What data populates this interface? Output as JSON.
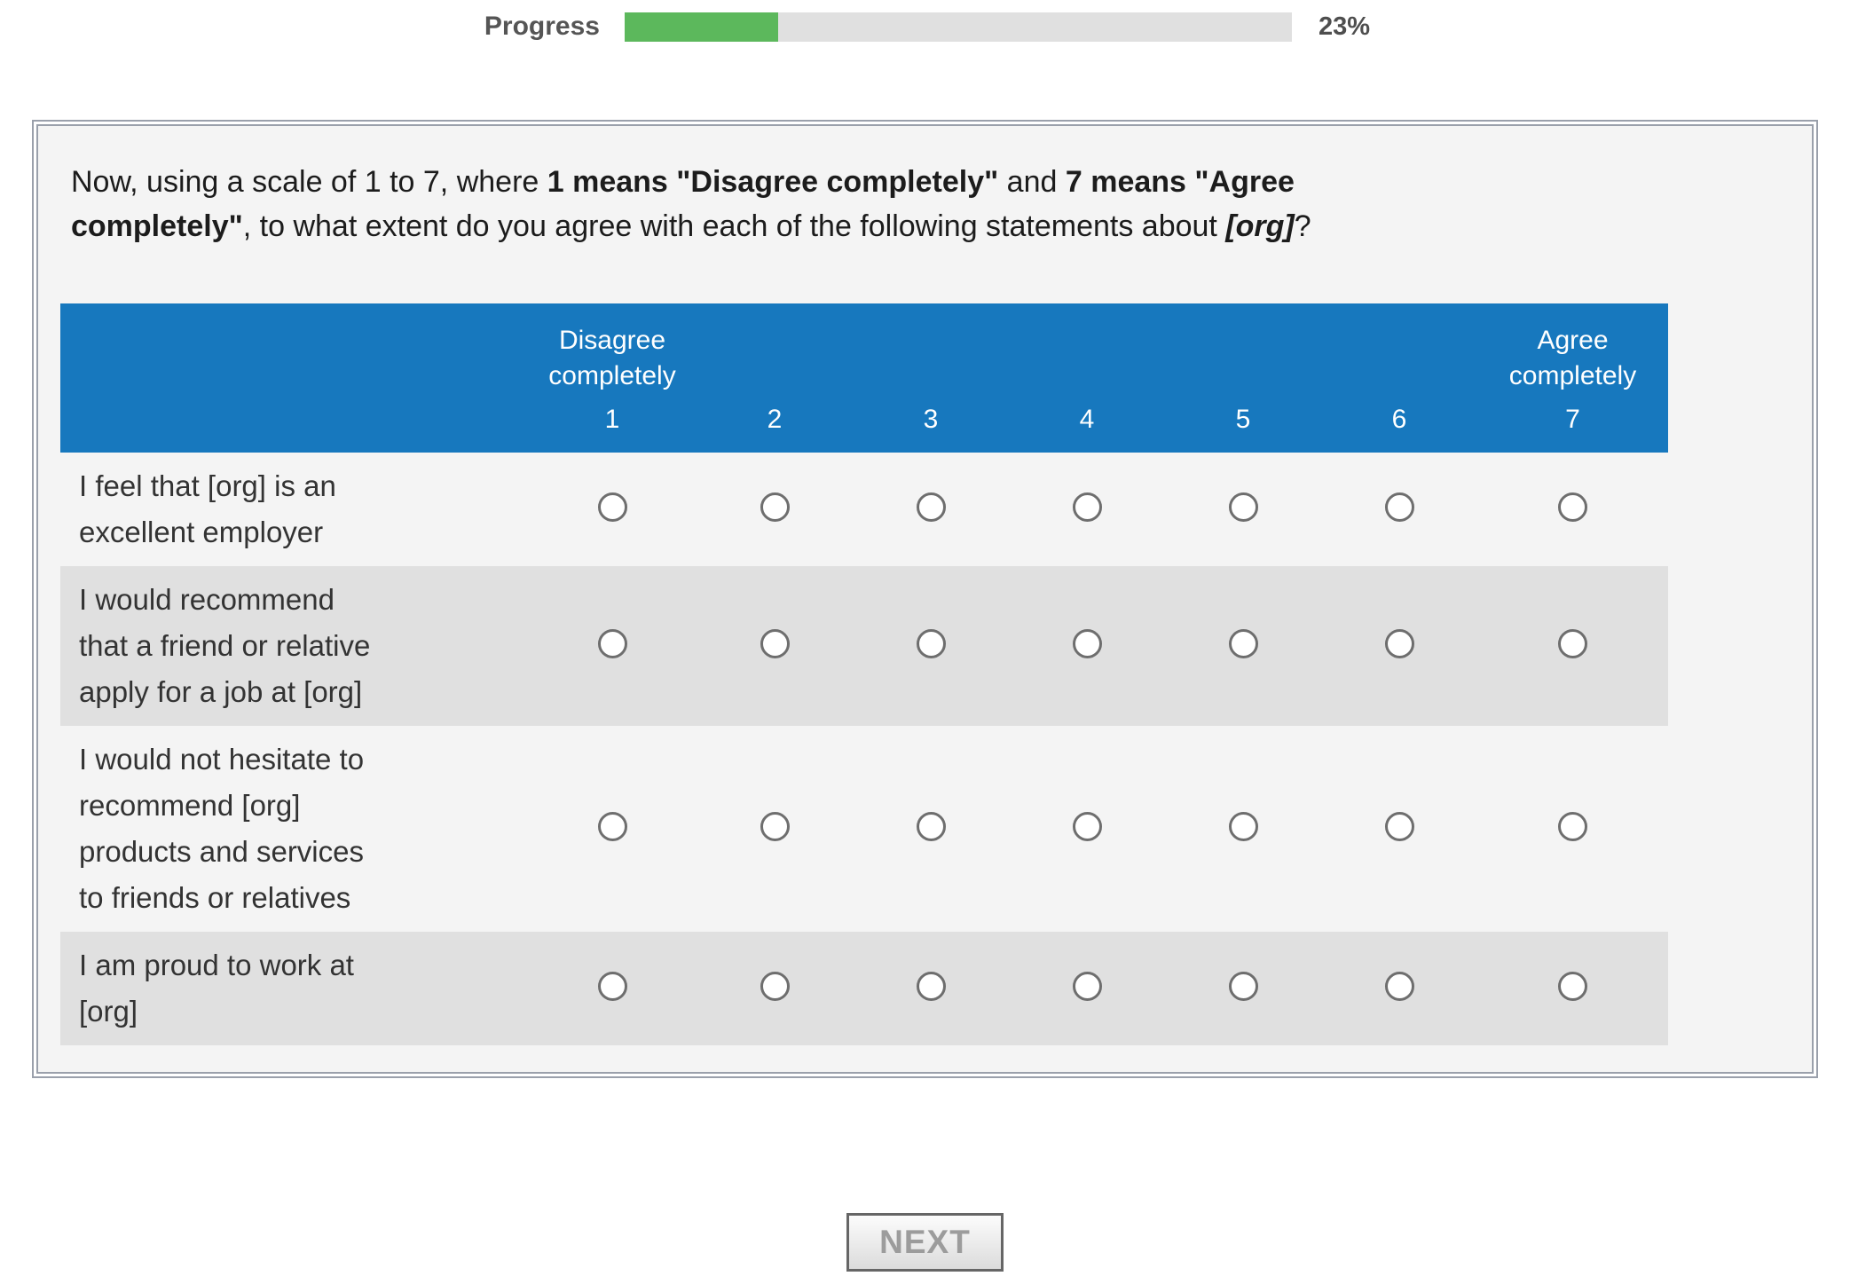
{
  "progress": {
    "label": "Progress",
    "percent": 23,
    "percent_label": "23%"
  },
  "question": {
    "segments": [
      {
        "text": "Now, using a scale of 1 to 7, where "
      },
      {
        "text": "1 means \"Disagree completely\"",
        "bold": true
      },
      {
        "text": " and "
      },
      {
        "text": "7 means \"Agree completely\"",
        "bold": true
      },
      {
        "text": ", to what extent do you agree with each of the following statements about "
      },
      {
        "text": "[org]",
        "bold": true,
        "italic": true
      },
      {
        "text": "?"
      }
    ]
  },
  "table": {
    "scale_min_label": "Disagree completely",
    "scale_max_label": "Agree completely",
    "scale_points": [
      "1",
      "2",
      "3",
      "4",
      "5",
      "6",
      "7"
    ],
    "statements": [
      {
        "lines": [
          "I feel that [org] is an",
          "excellent employer"
        ]
      },
      {
        "lines": [
          "I would recommend",
          "that a friend or relative",
          "apply for a job at [org]"
        ]
      },
      {
        "lines": [
          "I would not hesitate to",
          "recommend [org]",
          "products and services",
          "to friends or relatives"
        ]
      },
      {
        "lines": [
          "I am proud to work at",
          "[org]"
        ]
      }
    ]
  },
  "next_button": {
    "label": "NEXT"
  },
  "colors": {
    "header_blue": "#1778be",
    "progress_green": "#5cb85c",
    "row_stripe": "#e0e0e0",
    "box_background": "#f4f4f4",
    "progress_track": "#e0e0e0"
  }
}
